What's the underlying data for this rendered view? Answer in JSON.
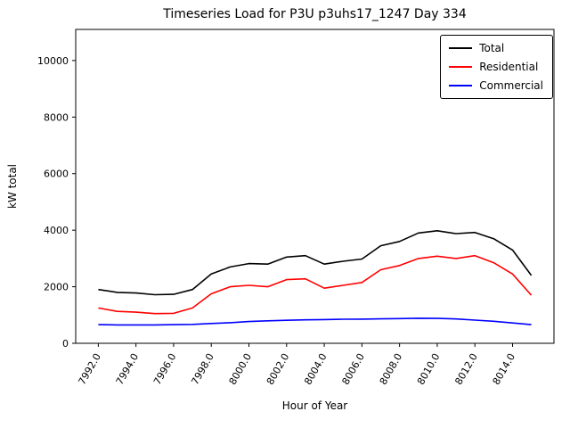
{
  "chart_data": {
    "type": "line",
    "title": "Timeseries Load for P3U p3uhs17_1247  Day 334",
    "xlabel": "Hour of Year",
    "ylabel": "kW total",
    "xlim": [
      7990.8,
      8016.2
    ],
    "ylim": [
      0,
      11100
    ],
    "grid": false,
    "legend_position": "upper right",
    "xticks": [
      7992,
      7994,
      7996,
      7998,
      8000,
      8002,
      8004,
      8006,
      8008,
      8010,
      8012,
      8014
    ],
    "xtick_labels": [
      "7992.0",
      "7994.0",
      "7996.0",
      "7998.0",
      "8000.0",
      "8002.0",
      "8004.0",
      "8006.0",
      "8008.0",
      "8010.0",
      "8012.0",
      "8014.0"
    ],
    "yticks": [
      0,
      2000,
      4000,
      6000,
      8000,
      10000
    ],
    "ytick_labels": [
      "0",
      "2000",
      "4000",
      "6000",
      "8000",
      "10000"
    ],
    "x": [
      7992,
      7993,
      7994,
      7995,
      7996,
      7997,
      7998,
      7999,
      8000,
      8001,
      8002,
      8003,
      8004,
      8005,
      8006,
      8007,
      8008,
      8009,
      8010,
      8011,
      8012,
      8013,
      8014,
      8015
    ],
    "series": [
      {
        "name": "Total",
        "color": "#000000",
        "values": [
          1900,
          1800,
          1780,
          1720,
          1730,
          1900,
          2450,
          2700,
          2820,
          2800,
          3050,
          3100,
          2800,
          2900,
          2980,
          3450,
          3600,
          3900,
          3980,
          3880,
          3920,
          3700,
          3300,
          2400
        ]
      },
      {
        "name": "Residential",
        "color": "#ff0000",
        "values": [
          1250,
          1130,
          1100,
          1050,
          1060,
          1250,
          1750,
          2000,
          2050,
          2000,
          2250,
          2280,
          1950,
          2050,
          2150,
          2600,
          2750,
          3000,
          3080,
          3000,
          3100,
          2850,
          2450,
          1700
        ]
      },
      {
        "name": "Commercial",
        "color": "#0000ff",
        "values": [
          660,
          650,
          650,
          650,
          660,
          670,
          700,
          730,
          770,
          795,
          815,
          830,
          840,
          850,
          855,
          865,
          875,
          885,
          880,
          860,
          820,
          780,
          720,
          660
        ]
      }
    ]
  }
}
